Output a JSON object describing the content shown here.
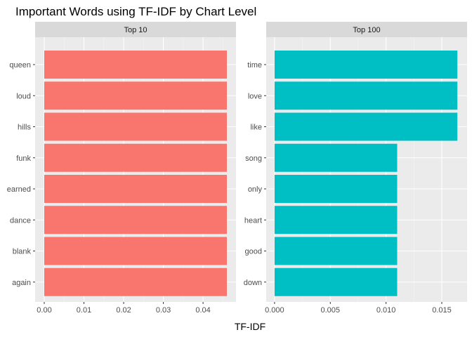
{
  "chart_data": {
    "type": "bar",
    "orientation": "horizontal",
    "title": "Important Words using TF-IDF by Chart Level",
    "xlabel": "TF-IDF",
    "ylabel": "",
    "grid": true,
    "legend": "none",
    "facets": [
      {
        "strip": "Top 10",
        "color": "#F8766D",
        "categories": [
          "queen",
          "loud",
          "hills",
          "funk",
          "earned",
          "dance",
          "blank",
          "again"
        ],
        "values": [
          0.046,
          0.046,
          0.046,
          0.046,
          0.046,
          0.046,
          0.046,
          0.046
        ],
        "xlim": [
          -0.0023,
          0.0483
        ],
        "xticks": [
          0.0,
          0.01,
          0.02,
          0.03,
          0.04
        ],
        "xtick_labels": [
          "0.00",
          "0.01",
          "0.02",
          "0.03",
          "0.04"
        ]
      },
      {
        "strip": "Top 100",
        "color": "#00BFC4",
        "categories": [
          "time",
          "love",
          "like",
          "song",
          "only",
          "heart",
          "good",
          "down"
        ],
        "values": [
          0.0164,
          0.0164,
          0.0164,
          0.011,
          0.011,
          0.011,
          0.011,
          0.011
        ],
        "xlim": [
          -0.00075,
          0.01727
        ],
        "xticks": [
          0.0,
          0.005,
          0.01,
          0.015
        ],
        "xtick_labels": [
          "0.000",
          "0.005",
          "0.010",
          "0.015"
        ]
      }
    ]
  },
  "colors": {
    "panel_background": "#EBEBEB",
    "strip_background": "#D9D9D9",
    "grid_major": "#FFFFFF",
    "grid_minor": "#F4F4F4"
  }
}
